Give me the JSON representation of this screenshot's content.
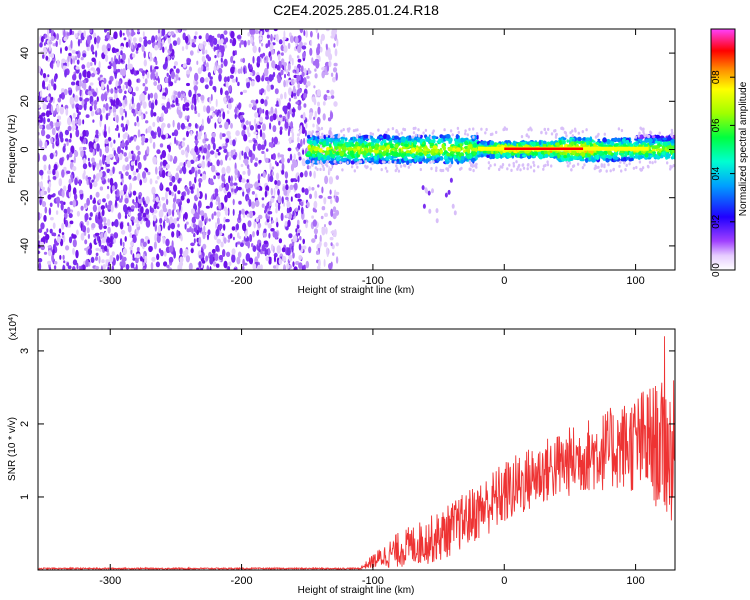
{
  "title": "C2E4.2025.285.01.24.R18",
  "chart_data": [
    {
      "type": "heatmap",
      "xlabel": "Height of straight line (km)",
      "ylabel": "Frequency (Hz)",
      "xlim": [
        -355,
        130
      ],
      "ylim": [
        -50,
        50
      ],
      "x_ticks": [
        "-300",
        "-200",
        "-100",
        "0",
        "100"
      ],
      "x_tick_values": [
        -300,
        -200,
        -100,
        0,
        100
      ],
      "y_ticks": [
        "40",
        "20",
        "0",
        "-20",
        "-40"
      ],
      "y_tick_values": [
        40,
        20,
        0,
        -20,
        -40
      ],
      "colorbar": {
        "label": "Normalized spectral amplitude",
        "ticks": [
          "0.0",
          "0.2",
          "0.4",
          "0.6",
          "0.8"
        ],
        "tick_values": [
          0.0,
          0.2,
          0.4,
          0.6,
          0.8
        ],
        "range": [
          0,
          1
        ],
        "colormap": [
          "#ffffff",
          "#a040ff",
          "#4b00ff",
          "#0000ff",
          "#00c8ff",
          "#00ff80",
          "#80ff00",
          "#ffff00",
          "#ff8000",
          "#ff0000",
          "#ff00ff"
        ]
      },
      "regions": [
        {
          "name": "noise",
          "x_range": [
            -355,
            -150
          ],
          "freq_range": [
            -50,
            50
          ],
          "amplitude": 0.05
        },
        {
          "name": "noise-fade",
          "x_range": [
            -150,
            -127
          ],
          "freq_range": [
            -50,
            50
          ],
          "amplitude": 0.02
        },
        {
          "name": "signal-band",
          "x_range": [
            -150,
            130
          ],
          "center_freq": 0,
          "half_width_hz": 5,
          "amplitude_range": [
            0.3,
            1.0
          ]
        },
        {
          "name": "strong-line",
          "x_range": [
            0,
            60
          ],
          "center_freq": 0,
          "amplitude": 1.0
        },
        {
          "name": "trailing-dots",
          "x_range": [
            -60,
            -35
          ],
          "freq_range": [
            -30,
            -8
          ],
          "amplitude": 0.05
        }
      ]
    },
    {
      "type": "line",
      "xlabel": "Height of straight line (km)",
      "ylabel": "SNR (10 * v/v)",
      "y_multiplier": "(x10^4)",
      "xlim": [
        -355,
        130
      ],
      "ylim": [
        0,
        3.3
      ],
      "x_ticks": [
        "-300",
        "-200",
        "-100",
        "0",
        "100"
      ],
      "x_tick_values": [
        -300,
        -200,
        -100,
        0,
        100
      ],
      "y_ticks": [
        "3",
        "2",
        "1"
      ],
      "y_tick_values": [
        3,
        2,
        1
      ],
      "color": "#ee3333",
      "envelope_keypoints": [
        {
          "x": -355,
          "mean": 0.02,
          "spread": 0.01
        },
        {
          "x": -110,
          "mean": 0.02,
          "spread": 0.01
        },
        {
          "x": -100,
          "mean": 0.12,
          "spread": 0.1
        },
        {
          "x": -80,
          "mean": 0.28,
          "spread": 0.25
        },
        {
          "x": -50,
          "mean": 0.45,
          "spread": 0.35
        },
        {
          "x": -20,
          "mean": 0.8,
          "spread": 0.4
        },
        {
          "x": 0,
          "mean": 1.05,
          "spread": 0.45
        },
        {
          "x": 30,
          "mean": 1.35,
          "spread": 0.45
        },
        {
          "x": 60,
          "mean": 1.55,
          "spread": 0.5
        },
        {
          "x": 90,
          "mean": 1.7,
          "spread": 0.6
        },
        {
          "x": 110,
          "mean": 1.75,
          "spread": 0.8
        },
        {
          "x": 130,
          "mean": 1.6,
          "spread": 1.0
        }
      ],
      "peak": {
        "x": 122,
        "y": 3.2
      }
    }
  ]
}
